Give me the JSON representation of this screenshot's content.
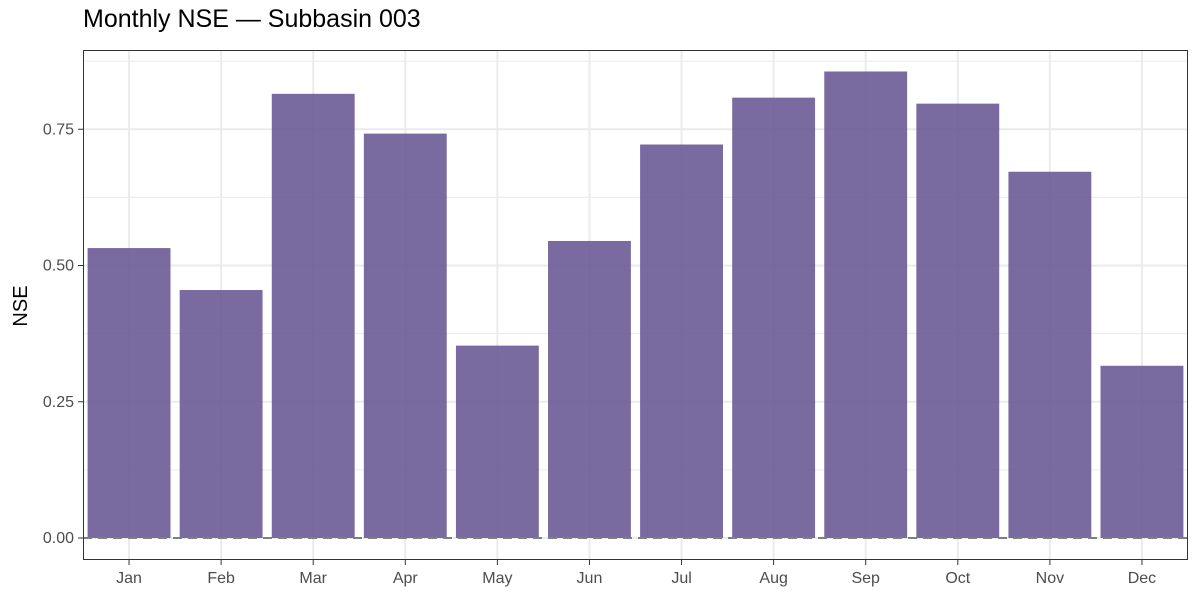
{
  "chart_data": {
    "type": "bar",
    "title": "Monthly NSE — Subbasin 003",
    "xlabel": "",
    "ylabel": "NSE",
    "categories": [
      "Jan",
      "Feb",
      "Mar",
      "Apr",
      "May",
      "Jun",
      "Jul",
      "Aug",
      "Sep",
      "Oct",
      "Nov",
      "Dec"
    ],
    "values": [
      0.532,
      0.455,
      0.815,
      0.742,
      0.353,
      0.545,
      0.722,
      0.808,
      0.856,
      0.797,
      0.672,
      0.316
    ],
    "ylim": [
      -0.05,
      0.885
    ],
    "yticks": [
      0.0,
      0.25,
      0.5,
      0.75
    ],
    "ytick_labels": [
      "0.00",
      "0.25",
      "0.50",
      "0.75"
    ],
    "reference_line": 0,
    "grid": true,
    "legend": "none",
    "colors": {
      "bar": "#6a5a96",
      "grid": "#ebebeb",
      "reference_line": "#7f7f7f",
      "panel_border": "#333333"
    }
  }
}
